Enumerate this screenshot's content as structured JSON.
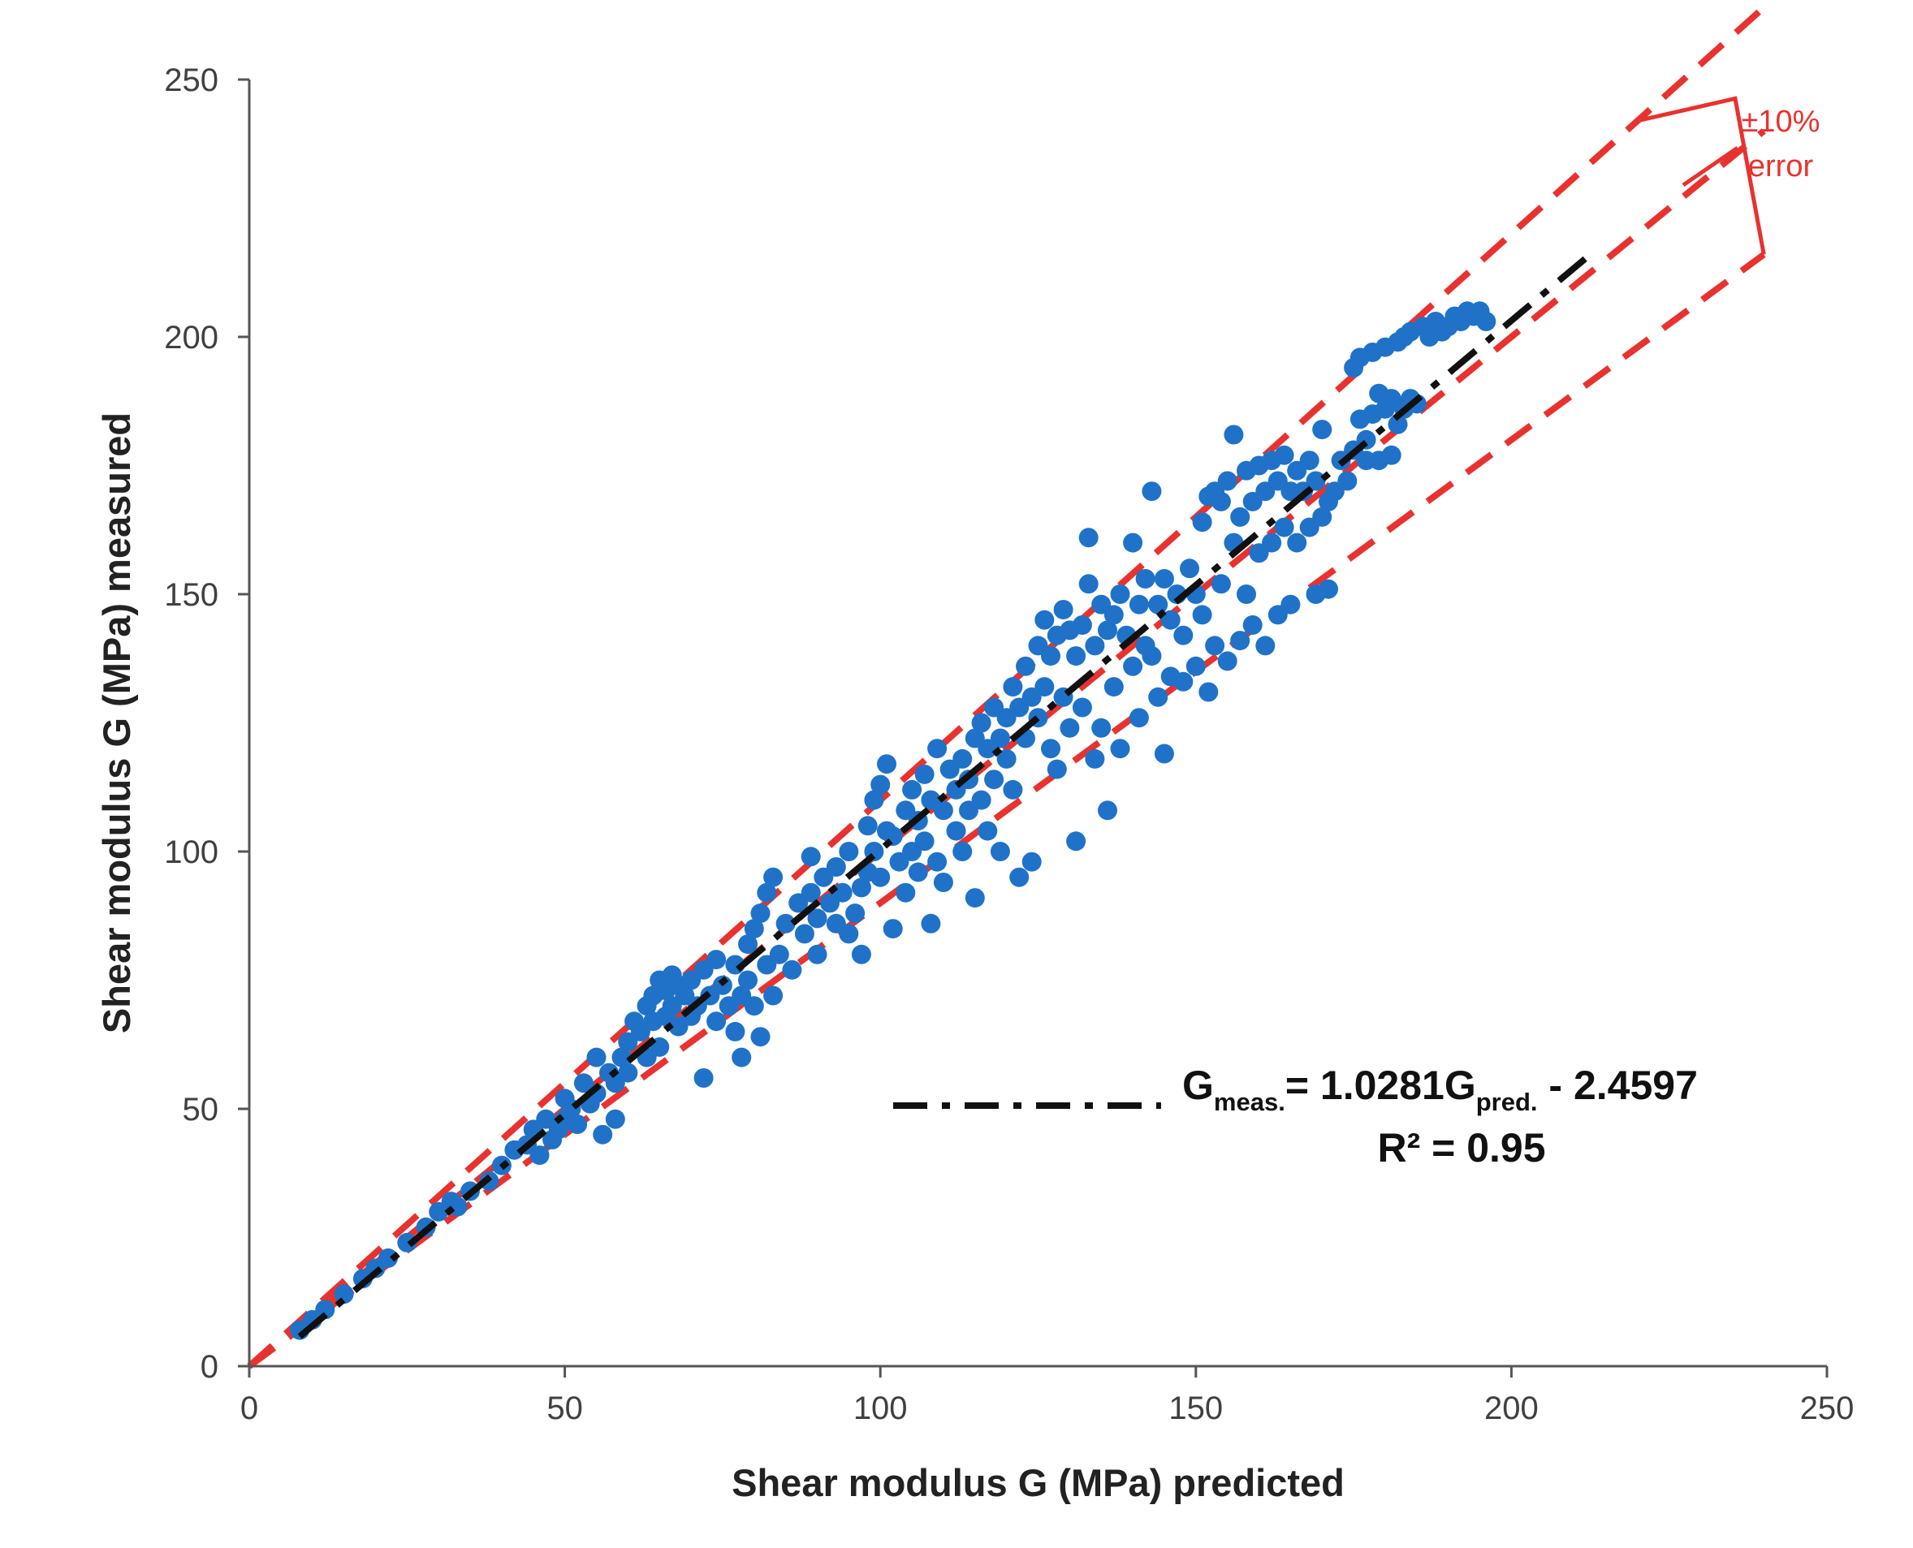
{
  "chart_data": {
    "type": "scatter",
    "title": "",
    "xlabel": "Shear modulus G (MPa) predicted",
    "ylabel": "Shear modulus G (MPa) measured",
    "xlim": [
      0,
      250
    ],
    "ylim": [
      0,
      250
    ],
    "x_ticks": [
      "0",
      "50",
      "100",
      "150",
      "200",
      "250"
    ],
    "y_ticks": [
      "0",
      "50",
      "100",
      "150",
      "200",
      "250"
    ],
    "grid": false,
    "colors": {
      "points": "#1f72c8",
      "error_lines": "#e8322f",
      "trend": "#111111"
    },
    "trendline": {
      "slope": 1.0281,
      "intercept": -2.4597,
      "x_range": [
        8,
        213
      ],
      "label_lead": "G",
      "label_sub1": "meas.",
      "label_mid": "= 1.0281G",
      "label_sub2": "pred.",
      "label_tail": " - 2.4597",
      "r2_label": "R² = 0.95"
    },
    "error_band": {
      "percent": 10,
      "label_line1": "±10%",
      "label_line2": "error",
      "x_max": 240
    },
    "series": [
      {
        "name": "measured vs predicted",
        "points": [
          [
            8,
            7
          ],
          [
            10,
            9
          ],
          [
            12,
            11
          ],
          [
            15,
            14
          ],
          [
            18,
            17
          ],
          [
            20,
            19
          ],
          [
            22,
            21
          ],
          [
            25,
            24
          ],
          [
            28,
            27
          ],
          [
            30,
            30
          ],
          [
            32,
            32
          ],
          [
            33,
            31
          ],
          [
            35,
            34
          ],
          [
            38,
            36
          ],
          [
            40,
            39
          ],
          [
            42,
            42
          ],
          [
            44,
            43
          ],
          [
            45,
            46
          ],
          [
            46,
            41
          ],
          [
            47,
            48
          ],
          [
            48,
            44
          ],
          [
            49,
            46
          ],
          [
            50,
            48
          ],
          [
            50,
            52
          ],
          [
            51,
            50
          ],
          [
            52,
            47
          ],
          [
            53,
            55
          ],
          [
            54,
            51
          ],
          [
            55,
            53
          ],
          [
            55,
            60
          ],
          [
            56,
            45
          ],
          [
            57,
            57
          ],
          [
            58,
            55
          ],
          [
            58,
            48
          ],
          [
            59,
            60
          ],
          [
            60,
            63
          ],
          [
            60,
            57
          ],
          [
            61,
            67
          ],
          [
            62,
            65
          ],
          [
            63,
            70
          ],
          [
            63,
            60
          ],
          [
            64,
            72
          ],
          [
            64,
            67
          ],
          [
            65,
            75
          ],
          [
            65,
            62
          ],
          [
            66,
            73
          ],
          [
            66,
            68
          ],
          [
            67,
            76
          ],
          [
            67,
            70
          ],
          [
            68,
            74
          ],
          [
            68,
            66
          ],
          [
            69,
            72
          ],
          [
            70,
            75
          ],
          [
            70,
            68
          ],
          [
            71,
            70
          ],
          [
            72,
            77
          ],
          [
            72,
            56
          ],
          [
            73,
            72
          ],
          [
            74,
            79
          ],
          [
            74,
            67
          ],
          [
            75,
            74
          ],
          [
            76,
            70
          ],
          [
            77,
            78
          ],
          [
            77,
            65
          ],
          [
            78,
            72
          ],
          [
            78,
            60
          ],
          [
            79,
            82
          ],
          [
            79,
            75
          ],
          [
            80,
            85
          ],
          [
            80,
            70
          ],
          [
            81,
            88
          ],
          [
            81,
            64
          ],
          [
            82,
            92
          ],
          [
            82,
            78
          ],
          [
            83,
            95
          ],
          [
            83,
            72
          ],
          [
            84,
            80
          ],
          [
            85,
            86
          ],
          [
            86,
            77
          ],
          [
            87,
            90
          ],
          [
            88,
            84
          ],
          [
            89,
            99
          ],
          [
            89,
            92
          ],
          [
            90,
            87
          ],
          [
            90,
            80
          ],
          [
            91,
            95
          ],
          [
            92,
            90
          ],
          [
            93,
            86
          ],
          [
            93,
            97
          ],
          [
            94,
            92
          ],
          [
            95,
            100
          ],
          [
            95,
            84
          ],
          [
            96,
            88
          ],
          [
            97,
            93
          ],
          [
            97,
            80
          ],
          [
            98,
            105
          ],
          [
            98,
            96
          ],
          [
            99,
            110
          ],
          [
            99,
            100
          ],
          [
            100,
            113
          ],
          [
            100,
            95
          ],
          [
            101,
            117
          ],
          [
            101,
            104
          ],
          [
            102,
            103
          ],
          [
            102,
            85
          ],
          [
            103,
            98
          ],
          [
            104,
            108
          ],
          [
            104,
            92
          ],
          [
            105,
            112
          ],
          [
            105,
            100
          ],
          [
            106,
            106
          ],
          [
            106,
            96
          ],
          [
            107,
            115
          ],
          [
            107,
            102
          ],
          [
            108,
            110
          ],
          [
            108,
            86
          ],
          [
            109,
            120
          ],
          [
            109,
            98
          ],
          [
            110,
            108
          ],
          [
            110,
            94
          ],
          [
            111,
            116
          ],
          [
            112,
            104
          ],
          [
            112,
            112
          ],
          [
            113,
            118
          ],
          [
            113,
            100
          ],
          [
            114,
            114
          ],
          [
            114,
            108
          ],
          [
            115,
            122
          ],
          [
            115,
            91
          ],
          [
            116,
            125
          ],
          [
            116,
            110
          ],
          [
            117,
            120
          ],
          [
            117,
            104
          ],
          [
            118,
            128
          ],
          [
            118,
            114
          ],
          [
            119,
            122
          ],
          [
            119,
            100
          ],
          [
            120,
            126
          ],
          [
            120,
            118
          ],
          [
            121,
            132
          ],
          [
            121,
            112
          ],
          [
            122,
            128
          ],
          [
            122,
            95
          ],
          [
            123,
            136
          ],
          [
            123,
            122
          ],
          [
            124,
            130
          ],
          [
            124,
            98
          ],
          [
            125,
            140
          ],
          [
            125,
            126
          ],
          [
            126,
            145
          ],
          [
            126,
            132
          ],
          [
            127,
            138
          ],
          [
            127,
            120
          ],
          [
            128,
            142
          ],
          [
            128,
            116
          ],
          [
            129,
            147
          ],
          [
            129,
            130
          ],
          [
            130,
            143
          ],
          [
            130,
            124
          ],
          [
            131,
            138
          ],
          [
            131,
            102
          ],
          [
            132,
            144
          ],
          [
            132,
            128
          ],
          [
            133,
            152
          ],
          [
            133,
            161
          ],
          [
            134,
            140
          ],
          [
            134,
            118
          ],
          [
            135,
            148
          ],
          [
            135,
            124
          ],
          [
            136,
            143
          ],
          [
            136,
            108
          ],
          [
            137,
            146
          ],
          [
            137,
            132
          ],
          [
            138,
            150
          ],
          [
            138,
            120
          ],
          [
            139,
            142
          ],
          [
            140,
            160
          ],
          [
            140,
            136
          ],
          [
            141,
            148
          ],
          [
            141,
            126
          ],
          [
            142,
            153
          ],
          [
            142,
            140
          ],
          [
            143,
            170
          ],
          [
            143,
            138
          ],
          [
            144,
            148
          ],
          [
            144,
            130
          ],
          [
            145,
            153
          ],
          [
            145,
            119
          ],
          [
            146,
            145
          ],
          [
            146,
            134
          ],
          [
            147,
            150
          ],
          [
            148,
            142
          ],
          [
            148,
            133
          ],
          [
            149,
            155
          ],
          [
            150,
            150
          ],
          [
            150,
            136
          ],
          [
            151,
            164
          ],
          [
            151,
            146
          ],
          [
            152,
            169
          ],
          [
            152,
            131
          ],
          [
            153,
            170
          ],
          [
            153,
            140
          ],
          [
            154,
            168
          ],
          [
            154,
            152
          ],
          [
            155,
            172
          ],
          [
            155,
            137
          ],
          [
            156,
            181
          ],
          [
            156,
            160
          ],
          [
            157,
            165
          ],
          [
            157,
            141
          ],
          [
            158,
            174
          ],
          [
            158,
            150
          ],
          [
            159,
            168
          ],
          [
            159,
            144
          ],
          [
            160,
            175
          ],
          [
            160,
            158
          ],
          [
            161,
            170
          ],
          [
            161,
            140
          ],
          [
            162,
            176
          ],
          [
            162,
            160
          ],
          [
            163,
            172
          ],
          [
            163,
            146
          ],
          [
            164,
            177
          ],
          [
            164,
            163
          ],
          [
            165,
            170
          ],
          [
            165,
            148
          ],
          [
            166,
            174
          ],
          [
            166,
            160
          ],
          [
            167,
            170
          ],
          [
            168,
            176
          ],
          [
            168,
            163
          ],
          [
            169,
            172
          ],
          [
            169,
            150
          ],
          [
            170,
            182
          ],
          [
            170,
            165
          ],
          [
            171,
            168
          ],
          [
            171,
            151
          ],
          [
            172,
            170
          ],
          [
            173,
            176
          ],
          [
            174,
            172
          ],
          [
            175,
            178
          ],
          [
            175,
            194
          ],
          [
            176,
            184
          ],
          [
            176,
            196
          ],
          [
            177,
            180
          ],
          [
            177,
            176
          ],
          [
            178,
            185
          ],
          [
            178,
            197
          ],
          [
            179,
            189
          ],
          [
            179,
            176
          ],
          [
            180,
            186
          ],
          [
            180,
            198
          ],
          [
            181,
            188
          ],
          [
            181,
            177
          ],
          [
            182,
            183
          ],
          [
            182,
            199
          ],
          [
            183,
            186
          ],
          [
            183,
            200
          ],
          [
            184,
            188
          ],
          [
            184,
            201
          ],
          [
            185,
            187
          ],
          [
            186,
            202
          ],
          [
            187,
            200
          ],
          [
            188,
            203
          ],
          [
            189,
            201
          ],
          [
            190,
            202
          ],
          [
            191,
            204
          ],
          [
            192,
            203
          ],
          [
            193,
            205
          ],
          [
            194,
            204
          ],
          [
            195,
            205
          ],
          [
            196,
            203
          ]
        ]
      }
    ]
  }
}
